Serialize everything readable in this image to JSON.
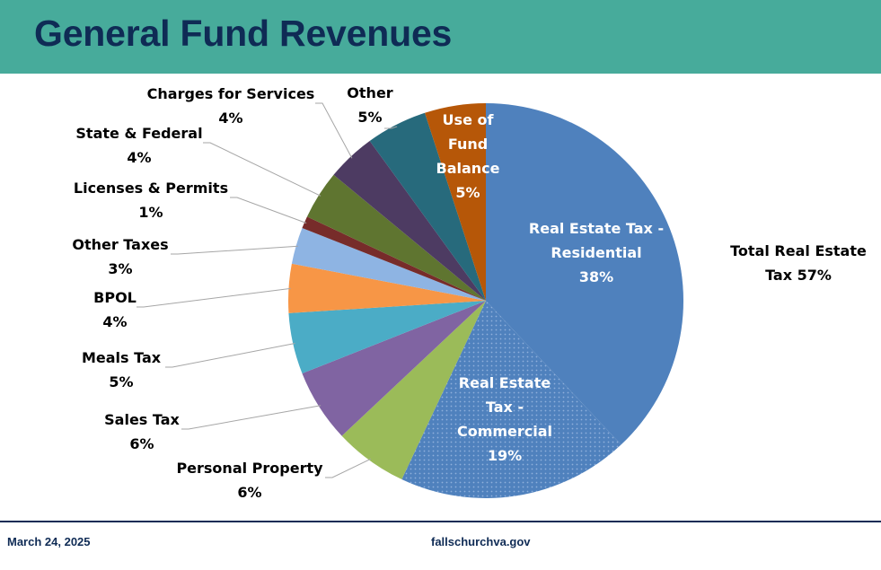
{
  "header": {
    "title": "General Fund Revenues"
  },
  "footer": {
    "date": "March 24, 2025",
    "url": "fallschurchva.gov"
  },
  "colors": {
    "header_bg": "#47ab9b",
    "title": "#0f2b55"
  },
  "chart_data": {
    "type": "pie",
    "title": "General Fund Revenues",
    "start": "top",
    "direction": "clockwise",
    "slices": [
      {
        "name": "Real Estate Tax - Residential",
        "lines": [
          "Real Estate Tax -",
          "Residential"
        ],
        "value": 38,
        "label": "38%",
        "color": "#4f81bd",
        "label_inside": true
      },
      {
        "name": "Real Estate Tax - Commercial",
        "lines": [
          "Real Estate",
          "Tax -",
          "Commercial"
        ],
        "value": 19,
        "label": "19%",
        "color": "#4f81bd",
        "pattern": "dots",
        "label_inside": true
      },
      {
        "name": "Personal Property",
        "lines": [
          "Personal Property"
        ],
        "value": 6,
        "label": "6%",
        "color": "#9bbb59"
      },
      {
        "name": "Sales Tax",
        "lines": [
          "Sales Tax"
        ],
        "value": 6,
        "label": "6%",
        "color": "#8064a2"
      },
      {
        "name": "Meals Tax",
        "lines": [
          "Meals Tax"
        ],
        "value": 5,
        "label": "5%",
        "color": "#4bacc6"
      },
      {
        "name": "BPOL",
        "lines": [
          "BPOL"
        ],
        "value": 4,
        "label": "4%",
        "color": "#f79646"
      },
      {
        "name": "Other Taxes",
        "lines": [
          "Other Taxes"
        ],
        "value": 3,
        "label": "3%",
        "color": "#8eb4e3"
      },
      {
        "name": "Licenses & Permits",
        "lines": [
          "Licenses & Permits"
        ],
        "value": 1,
        "label": "1%",
        "color": "#772c2a"
      },
      {
        "name": "State & Federal",
        "lines": [
          "State & Federal"
        ],
        "value": 4,
        "label": "4%",
        "color": "#5f7530"
      },
      {
        "name": "Charges for Services",
        "lines": [
          "Charges for Services"
        ],
        "value": 4,
        "label": "4%",
        "color": "#4d3b62"
      },
      {
        "name": "Other",
        "lines": [
          "Other"
        ],
        "value": 5,
        "label": "5%",
        "color": "#276a7c"
      },
      {
        "name": "Use of Fund Balance",
        "lines": [
          "Use of",
          "Fund",
          "Balance"
        ],
        "value": 5,
        "label": "5%",
        "color": "#b65708",
        "label_inside": true
      }
    ],
    "annotation": {
      "lines": [
        "Total Real Estate",
        "Tax 57%"
      ]
    }
  }
}
